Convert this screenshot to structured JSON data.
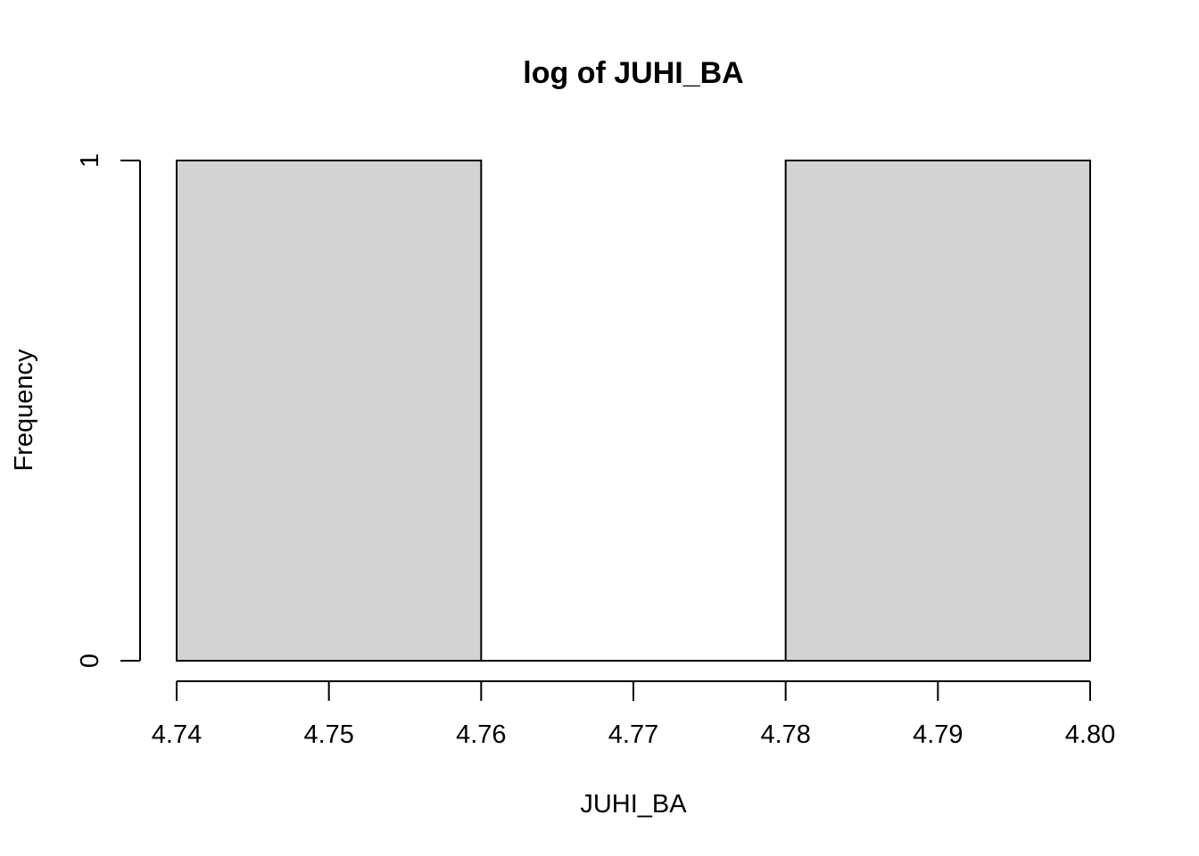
{
  "chart_data": {
    "type": "bar",
    "subtype": "histogram",
    "title": "log of JUHI_BA",
    "xlabel": "JUHI_BA",
    "ylabel": "Frequency",
    "bins": [
      {
        "start": 4.74,
        "end": 4.76,
        "count": 1
      },
      {
        "start": 4.76,
        "end": 4.78,
        "count": 0
      },
      {
        "start": 4.78,
        "end": 4.8,
        "count": 1
      }
    ],
    "xlim": [
      4.74,
      4.8
    ],
    "ylim": [
      0,
      1
    ],
    "x_ticks": [
      "4.74",
      "4.75",
      "4.76",
      "4.77",
      "4.78",
      "4.79",
      "4.80"
    ],
    "y_ticks": [
      "0",
      "1"
    ],
    "bar_color": "#d3d3d3",
    "grid": false,
    "legend": "none"
  }
}
